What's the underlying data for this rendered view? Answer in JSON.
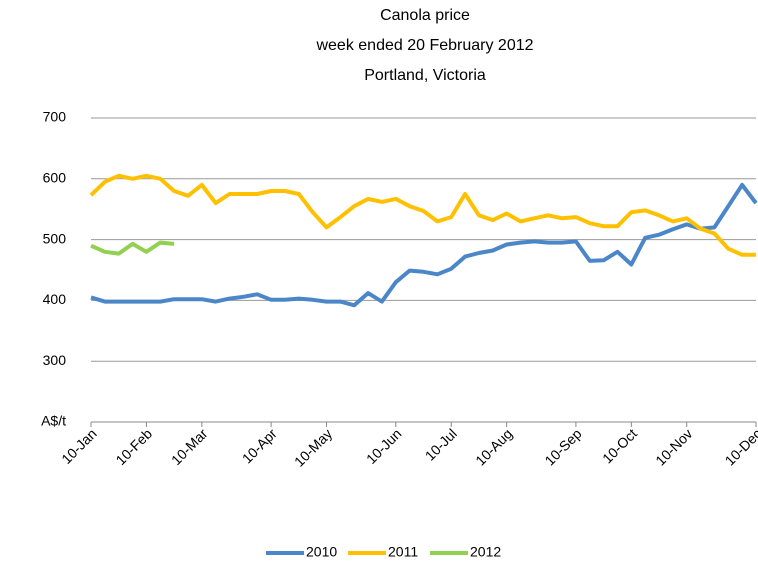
{
  "chart_data": {
    "type": "line",
    "title": [
      "Canola price",
      "week ended  20 February 2012",
      "Portland, Victoria"
    ],
    "categories": [
      "10-Jan",
      null,
      null,
      null,
      "10-Feb",
      null,
      null,
      null,
      "10-Mar",
      null,
      null,
      null,
      null,
      "10-Apr",
      null,
      null,
      null,
      "10-May",
      null,
      null,
      null,
      null,
      "10-Jun",
      null,
      null,
      null,
      "10-Jul",
      null,
      null,
      null,
      "10-Aug",
      null,
      null,
      null,
      null,
      "10-Sep",
      null,
      null,
      null,
      "10-Oct",
      null,
      null,
      null,
      "10-Nov",
      null,
      null,
      null,
      null,
      "10-Dec"
    ],
    "series": [
      {
        "name": "2010",
        "color": "#4a86c8",
        "values": [
          405,
          398,
          398,
          398,
          398,
          398,
          402,
          402,
          402,
          398,
          403,
          406,
          410,
          401,
          401,
          403,
          401,
          398,
          398,
          392,
          412,
          398,
          430,
          449,
          447,
          443,
          452,
          472,
          478,
          482,
          492,
          495,
          497,
          495,
          495,
          497,
          465,
          466,
          480,
          459,
          503,
          508,
          517,
          525,
          518,
          520,
          555,
          590,
          560
        ]
      },
      {
        "name": "2011",
        "color": "#ffc000",
        "values": [
          573,
          595,
          605,
          600,
          605,
          600,
          580,
          572,
          590,
          560,
          575,
          575,
          575,
          580,
          580,
          575,
          545,
          520,
          537,
          555,
          567,
          562,
          567,
          555,
          547,
          530,
          537,
          575,
          540,
          532,
          543,
          530,
          535,
          540,
          535,
          537,
          527,
          522,
          522,
          545,
          548,
          540,
          530,
          535,
          518,
          510,
          485,
          475,
          475
        ]
      },
      {
        "name": "2012",
        "color": "#92d050",
        "values": [
          490,
          480,
          477,
          493,
          480,
          495,
          493,
          null,
          null,
          null,
          null,
          null,
          null,
          null,
          null,
          null,
          null,
          null,
          null,
          null,
          null,
          null,
          null,
          null,
          null,
          null,
          null,
          null,
          null,
          null,
          null,
          null,
          null,
          null,
          null,
          null,
          null,
          null,
          null,
          null,
          null,
          null,
          null,
          null,
          null,
          null,
          null,
          null,
          null
        ]
      }
    ],
    "ylim": [
      200,
      700
    ],
    "yticks": [
      {
        "value": 200,
        "label": "A$/t"
      },
      300,
      400,
      500,
      600,
      700
    ],
    "grid": true,
    "legend": "bottom"
  }
}
